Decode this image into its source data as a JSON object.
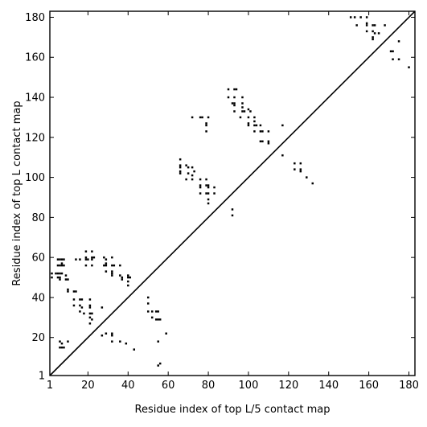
{
  "chart_data": {
    "type": "scatter",
    "title": "",
    "xlabel": "Residue index of top L/5 contact map",
    "ylabel": "Residue index of top L contact map",
    "xlim": [
      1,
      183
    ],
    "ylim": [
      1,
      183
    ],
    "xticks": [
      1,
      20,
      40,
      60,
      80,
      100,
      120,
      140,
      160,
      180
    ],
    "yticks": [
      1,
      20,
      40,
      60,
      80,
      100,
      120,
      140,
      160,
      180
    ],
    "xtick_labels": [
      "1",
      "20",
      "40",
      "60",
      "80",
      "100",
      "120",
      "140",
      "160",
      "180"
    ],
    "ytick_labels": [
      "1",
      "20",
      "40",
      "60",
      "80",
      "100",
      "120",
      "140",
      "160",
      "180"
    ],
    "diagonal": true,
    "grid": false,
    "marker_color": "#000000",
    "series": [
      {
        "region": "lower-right (top L/5 contacts)",
        "points": [
          [
            151,
            180
          ],
          [
            153,
            180
          ],
          [
            156,
            180
          ],
          [
            159,
            180
          ],
          [
            154,
            176
          ],
          [
            159,
            177
          ],
          [
            159,
            176
          ],
          [
            162,
            176
          ],
          [
            163,
            176
          ],
          [
            168,
            176
          ],
          [
            159,
            173
          ],
          [
            162,
            173
          ],
          [
            163,
            172
          ],
          [
            165,
            172
          ],
          [
            162,
            170
          ],
          [
            162,
            169
          ],
          [
            175,
            168
          ],
          [
            171,
            163
          ],
          [
            172,
            163
          ],
          [
            172,
            159
          ],
          [
            175,
            159
          ],
          [
            180,
            155
          ],
          [
            90,
            144
          ],
          [
            93,
            144
          ],
          [
            94,
            144
          ],
          [
            90,
            140
          ],
          [
            93,
            140
          ],
          [
            97,
            140
          ],
          [
            92,
            137
          ],
          [
            93,
            137
          ],
          [
            93,
            136
          ],
          [
            97,
            137
          ],
          [
            97,
            135
          ],
          [
            93,
            133
          ],
          [
            97,
            133
          ],
          [
            98,
            133
          ],
          [
            100,
            134
          ],
          [
            101,
            133
          ],
          [
            96,
            130
          ],
          [
            100,
            130
          ],
          [
            103,
            130
          ],
          [
            103,
            128
          ],
          [
            100,
            127
          ],
          [
            100,
            126
          ],
          [
            103,
            126
          ],
          [
            104,
            126
          ],
          [
            106,
            126
          ],
          [
            103,
            123
          ],
          [
            106,
            123
          ],
          [
            107,
            123
          ],
          [
            110,
            123
          ],
          [
            106,
            118
          ],
          [
            107,
            118
          ],
          [
            110,
            118
          ],
          [
            110,
            117
          ],
          [
            117,
            126
          ],
          [
            117,
            111
          ],
          [
            123,
            107
          ],
          [
            126,
            107
          ],
          [
            123,
            104
          ],
          [
            126,
            104
          ],
          [
            126,
            103
          ],
          [
            129,
            100
          ],
          [
            132,
            97
          ],
          [
            72,
            130
          ],
          [
            76,
            130
          ],
          [
            77,
            130
          ],
          [
            80,
            130
          ],
          [
            79,
            127
          ],
          [
            79,
            126
          ],
          [
            79,
            123
          ],
          [
            66,
            109
          ],
          [
            66,
            106
          ],
          [
            66,
            105
          ],
          [
            69,
            106
          ],
          [
            70,
            105
          ],
          [
            66,
            103
          ],
          [
            66,
            102
          ],
          [
            70,
            102
          ],
          [
            72,
            105
          ],
          [
            73,
            103
          ],
          [
            72,
            101
          ],
          [
            69,
            99
          ],
          [
            72,
            99
          ],
          [
            76,
            99
          ],
          [
            79,
            99
          ],
          [
            76,
            96
          ],
          [
            76,
            95
          ],
          [
            79,
            96
          ],
          [
            80,
            96
          ],
          [
            80,
            95
          ],
          [
            83,
            95
          ],
          [
            76,
            92
          ],
          [
            79,
            92
          ],
          [
            80,
            92
          ],
          [
            83,
            92
          ],
          [
            80,
            89
          ],
          [
            80,
            87
          ],
          [
            92,
            84
          ],
          [
            92,
            81
          ]
        ]
      },
      {
        "region": "upper-left (top L contacts)",
        "points": [
          [
            5,
            59
          ],
          [
            6,
            59
          ],
          [
            7,
            59
          ],
          [
            8,
            59
          ],
          [
            5,
            56
          ],
          [
            6,
            56
          ],
          [
            7,
            56
          ],
          [
            8,
            56
          ],
          [
            7,
            57
          ],
          [
            2,
            52
          ],
          [
            4,
            52
          ],
          [
            5,
            52
          ],
          [
            6,
            52
          ],
          [
            7,
            52
          ],
          [
            2,
            50
          ],
          [
            5,
            50
          ],
          [
            6,
            50
          ],
          [
            6,
            49
          ],
          [
            9,
            51
          ],
          [
            9,
            49
          ],
          [
            10,
            49
          ],
          [
            10,
            44
          ],
          [
            10,
            43
          ],
          [
            13,
            43
          ],
          [
            14,
            43
          ],
          [
            13,
            39
          ],
          [
            16,
            39
          ],
          [
            17,
            39
          ],
          [
            13,
            36
          ],
          [
            16,
            36
          ],
          [
            17,
            35
          ],
          [
            16,
            33
          ],
          [
            18,
            32
          ],
          [
            21,
            39
          ],
          [
            21,
            36
          ],
          [
            21,
            35
          ],
          [
            21,
            32
          ],
          [
            22,
            32
          ],
          [
            21,
            30
          ],
          [
            22,
            29
          ],
          [
            21,
            27
          ],
          [
            14,
            59
          ],
          [
            16,
            59
          ],
          [
            19,
            59
          ],
          [
            20,
            59
          ],
          [
            19,
            60
          ],
          [
            19,
            63
          ],
          [
            22,
            59
          ],
          [
            22,
            60
          ],
          [
            23,
            60
          ],
          [
            22,
            63
          ],
          [
            19,
            56
          ],
          [
            22,
            56
          ],
          [
            27,
            35
          ],
          [
            27,
            21
          ],
          [
            29,
            22
          ],
          [
            32,
            22
          ],
          [
            32,
            21
          ],
          [
            28,
            60
          ],
          [
            29,
            59
          ],
          [
            28,
            56
          ],
          [
            29,
            56
          ],
          [
            29,
            57
          ],
          [
            32,
            60
          ],
          [
            32,
            56
          ],
          [
            33,
            56
          ],
          [
            36,
            56
          ],
          [
            29,
            53
          ],
          [
            32,
            53
          ],
          [
            32,
            52
          ],
          [
            32,
            51
          ],
          [
            36,
            51
          ],
          [
            37,
            50
          ],
          [
            37,
            49
          ],
          [
            40,
            51
          ],
          [
            40,
            50
          ],
          [
            41,
            50
          ],
          [
            40,
            48
          ],
          [
            40,
            46
          ],
          [
            6,
            18
          ],
          [
            7,
            17
          ],
          [
            6,
            15
          ],
          [
            7,
            15
          ],
          [
            8,
            15
          ],
          [
            10,
            18
          ],
          [
            32,
            18
          ],
          [
            36,
            18
          ],
          [
            39,
            17
          ],
          [
            43,
            14
          ],
          [
            50,
            40
          ],
          [
            50,
            37
          ],
          [
            50,
            33
          ],
          [
            52,
            33
          ],
          [
            54,
            33
          ],
          [
            55,
            33
          ],
          [
            52,
            30
          ],
          [
            54,
            29
          ],
          [
            55,
            29
          ],
          [
            56,
            29
          ],
          [
            55,
            18
          ],
          [
            55,
            6
          ],
          [
            56,
            7
          ],
          [
            59,
            22
          ]
        ]
      }
    ]
  }
}
